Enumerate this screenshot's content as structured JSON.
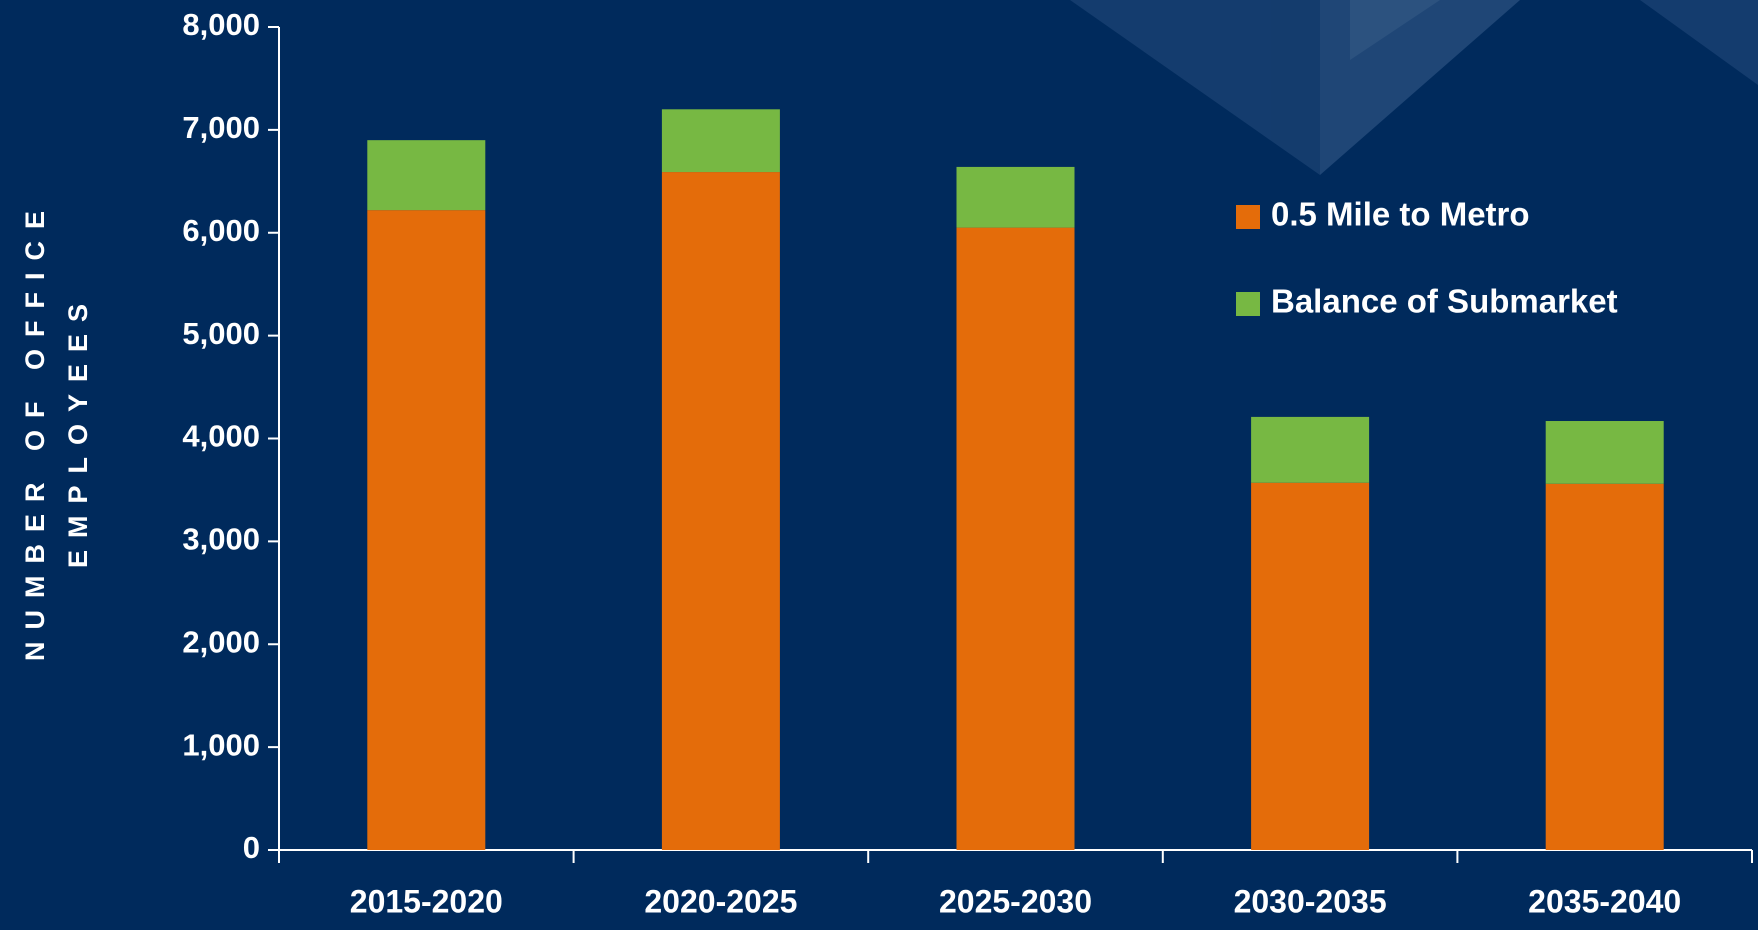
{
  "chart_data": {
    "type": "stacked_bar",
    "y_label_lines": [
      "NUMBER OF OFFICE",
      "EMPLOYEES"
    ],
    "categories": [
      "2015-2020",
      "2020-2025",
      "2025-2030",
      "2030-2035",
      "2035-2040"
    ],
    "series": [
      {
        "name": "0.5 Mile to Metro",
        "color": "#e46c0a",
        "values": [
          6220,
          6590,
          6050,
          3570,
          3560
        ]
      },
      {
        "name": "Balance of Submarket",
        "color": "#77b843",
        "values": [
          680,
          610,
          590,
          640,
          610
        ]
      }
    ],
    "ylim": [
      0,
      8000
    ],
    "yticks": [
      0,
      {
        "value": 1000,
        "label": "1,000"
      },
      {
        "value": 2000,
        "label": "2,000"
      },
      {
        "value": 3000,
        "label": "3,000"
      },
      {
        "value": 4000,
        "label": "4,000"
      },
      {
        "value": 5000,
        "label": "5,000"
      },
      {
        "value": 6000,
        "label": "6,000"
      },
      {
        "value": 7000,
        "label": "7,000"
      },
      {
        "value": 8000,
        "label": "8,000"
      }
    ],
    "legend": "upper right",
    "grid": false
  }
}
